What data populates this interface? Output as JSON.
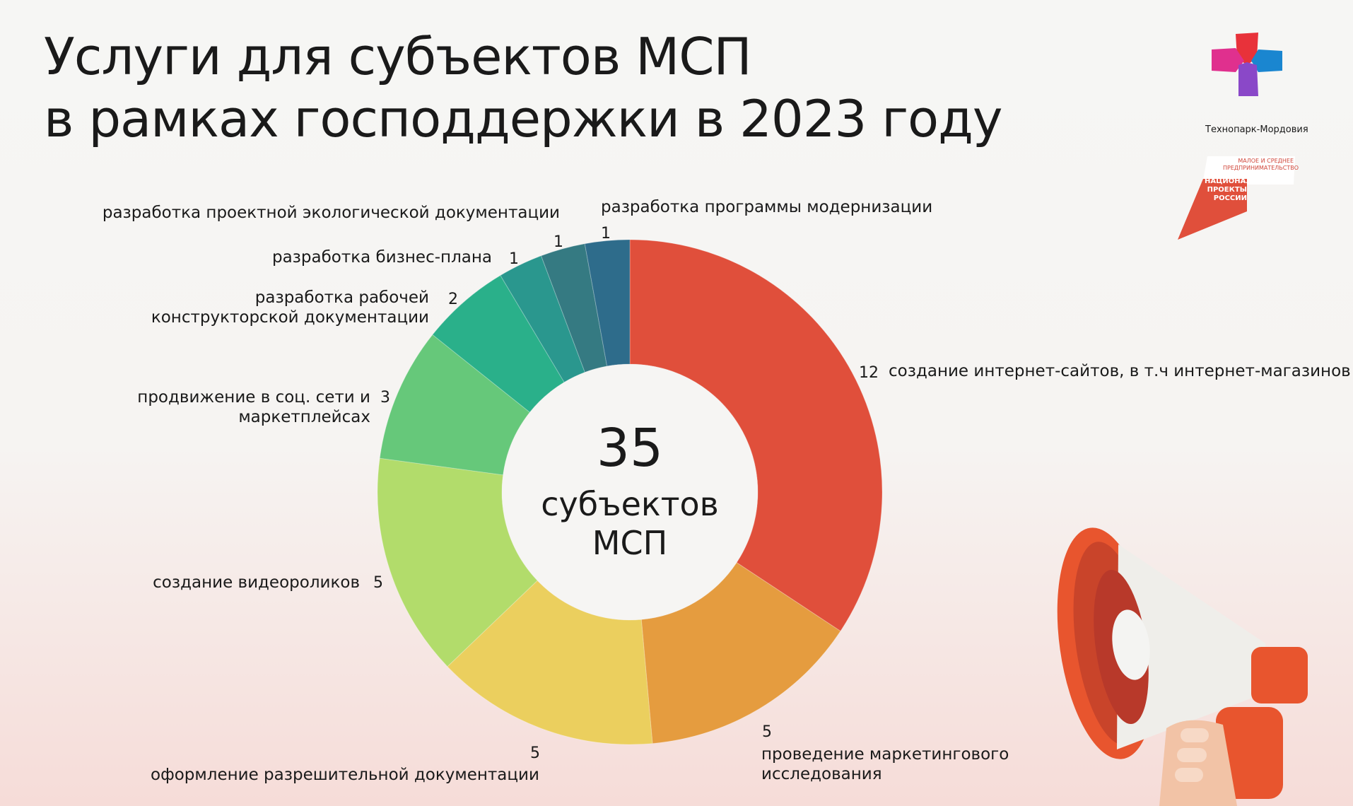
{
  "title": {
    "line1": "Услуги для субъектов МСП",
    "line2": "в рамках господдержки в 2023 году"
  },
  "logos": {
    "technopark": "Технопарк-Мордовия",
    "natproject_top": "МАЛОЕ И СРЕДНЕЕ ПРЕДПРИНИМАТЕЛЬСТВО",
    "natproject_main": "НАЦИОНАЛЬНЫЕ ПРОЕКТЫ РОССИИ"
  },
  "chart_data": {
    "type": "pie",
    "donut": true,
    "center": {
      "total": "35",
      "line1": "субъектов",
      "line2": "МСП"
    },
    "slices": [
      {
        "label": "создание интернет-сайтов, в т.ч интернет-магазинов",
        "value": 12,
        "color": "#E04F3B"
      },
      {
        "label": "проведение маркетингового исследования",
        "value": 5,
        "color": "#E59C3F"
      },
      {
        "label": "оформление разрешительной документации",
        "value": 5,
        "color": "#EBCF5E"
      },
      {
        "label": "создание видеороликов",
        "value": 5,
        "color": "#B2DC6B"
      },
      {
        "label": "продвижение в соц. сети и маркетплейсах",
        "value": 3,
        "color": "#66C87A"
      },
      {
        "label": "разработка рабочей конструкторской документации",
        "value": 2,
        "color": "#2AB08A"
      },
      {
        "label": "разработка бизнес-плана",
        "value": 1,
        "color": "#2A978E"
      },
      {
        "label": "разработка проектной экологической документации",
        "value": 1,
        "color": "#357A82"
      },
      {
        "label": "разработка программы модернизации",
        "value": 1,
        "color": "#2E6C8B"
      }
    ]
  }
}
